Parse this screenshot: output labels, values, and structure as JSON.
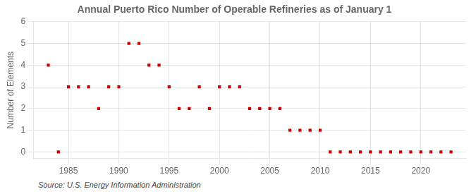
{
  "chart_data": {
    "type": "scatter",
    "title": "Annual Puerto Rico Number of Operable Refineries as of January 1",
    "ylabel": "Number of Elements",
    "annotations": [
      "Source: U.S. Energy Information Administration"
    ],
    "x": [
      1983,
      1984,
      1985,
      1986,
      1987,
      1988,
      1989,
      1990,
      1991,
      1992,
      1993,
      1994,
      1995,
      1996,
      1997,
      1998,
      1999,
      2000,
      2001,
      2002,
      2003,
      2004,
      2005,
      2006,
      2007,
      2008,
      2009,
      2010,
      2011,
      2012,
      2013,
      2014,
      2015,
      2016,
      2017,
      2018,
      2019,
      2020,
      2021,
      2022,
      2023
    ],
    "values": [
      4,
      0,
      3,
      3,
      3,
      2,
      3,
      3,
      5,
      5,
      4,
      4,
      3,
      2,
      2,
      3,
      2,
      3,
      3,
      3,
      2,
      2,
      2,
      2,
      1,
      1,
      1,
      1,
      0,
      0,
      0,
      0,
      0,
      0,
      0,
      0,
      0,
      0,
      0,
      0,
      0
    ],
    "color": "#cc0000",
    "marker": "square",
    "xlim": [
      1981.5,
      2024.5
    ],
    "xticks": [
      1985,
      1990,
      1995,
      2000,
      2005,
      2010,
      2015,
      2020
    ],
    "ylim": [
      -0.3,
      6
    ],
    "yticks": [
      0,
      1,
      2,
      3,
      4,
      5,
      6
    ],
    "grid": true
  }
}
